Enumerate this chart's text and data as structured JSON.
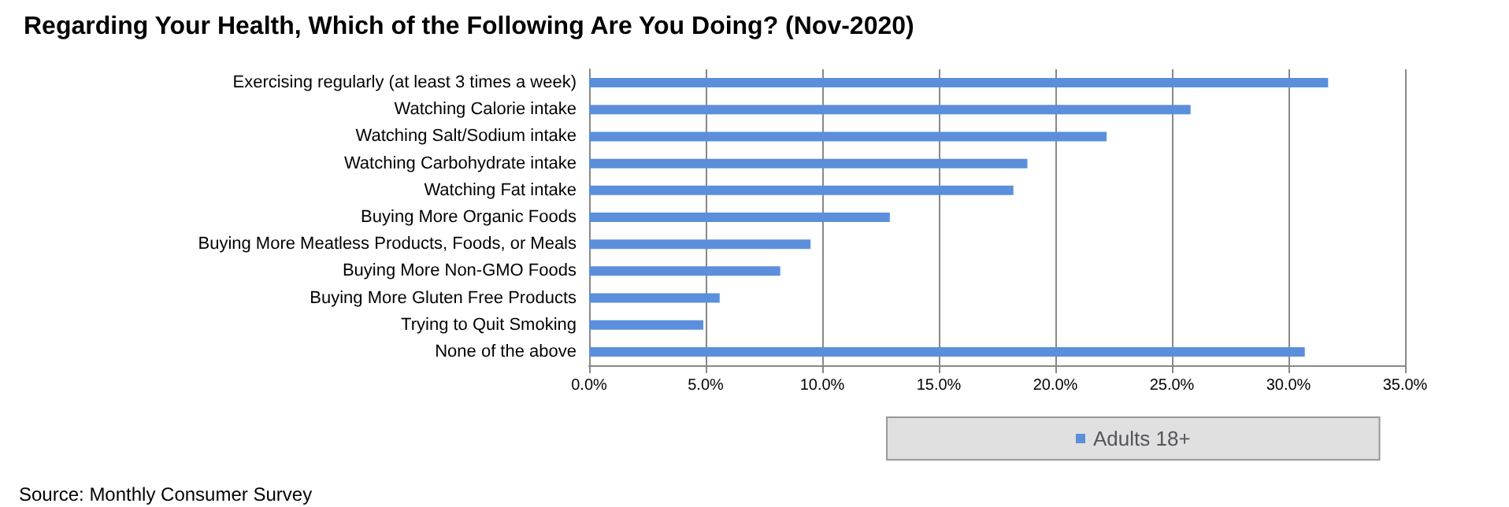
{
  "chart_data": {
    "type": "bar",
    "orientation": "horizontal",
    "title": "Regarding Your Health, Which of the Following Are You Doing? (Nov-2020)",
    "categories": [
      "Exercising regularly (at least 3 times a week)",
      "Watching Calorie intake",
      "Watching Salt/Sodium intake",
      "Watching Carbohydrate intake",
      "Watching Fat intake",
      "Buying More Organic Foods",
      "Buying More Meatless Products, Foods, or Meals",
      "Buying More Non-GMO Foods",
      "Buying More Gluten Free Products",
      "Trying to Quit Smoking",
      "None of the above"
    ],
    "series": [
      {
        "name": "Adults 18+",
        "color": "#5b8fdb",
        "values": [
          31.7,
          25.8,
          22.2,
          18.8,
          18.2,
          12.9,
          9.5,
          8.2,
          5.6,
          4.9,
          30.7
        ]
      }
    ],
    "xlim": [
      0,
      35
    ],
    "xticks": [
      {
        "value": 0,
        "label": "0.0%"
      },
      {
        "value": 5,
        "label": "5.0%"
      },
      {
        "value": 10,
        "label": "10.0%"
      },
      {
        "value": 15,
        "label": "15.0%"
      },
      {
        "value": 20,
        "label": "20.0%"
      },
      {
        "value": 25,
        "label": "25.0%"
      },
      {
        "value": 30,
        "label": "30.0%"
      },
      {
        "value": 35,
        "label": "35.0%"
      }
    ],
    "grid": "x",
    "legend": "bottom",
    "annotations": [
      "Source: Monthly Consumer Survey"
    ]
  }
}
